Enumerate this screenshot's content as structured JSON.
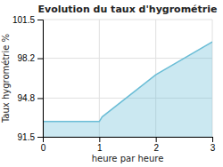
{
  "chart_data": {
    "type": "area",
    "title": "Evolution du taux d'hygrométrie",
    "xlabel": "heure par heure",
    "ylabel": "Taux hygrométrie %",
    "x": [
      0,
      1,
      1.05,
      2,
      3
    ],
    "values": [
      92.8,
      92.8,
      93.2,
      96.8,
      99.6
    ],
    "color": "#6bbdd6",
    "xlim": [
      0,
      3
    ],
    "ylim": [
      91.5,
      101.5
    ],
    "xticks": [
      0,
      1,
      2,
      3
    ],
    "yticks": [
      91.5,
      94.8,
      98.2,
      101.5
    ],
    "grid": true
  }
}
